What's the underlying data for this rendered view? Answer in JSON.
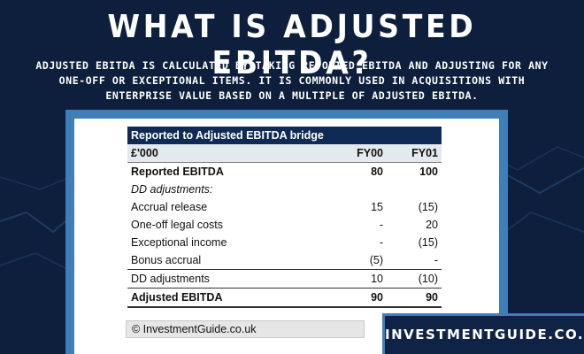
{
  "title": "WHAT IS ADJUSTED EBITDA?",
  "subtitle": "ADJUSTED EBITDA IS CALCULATED BY TAKING REPORTED EBITDA AND ADJUSTING FOR ANY ONE-OFF OR EXCEPTIONAL ITEMS. IT IS COMMONLY USED IN ACQUISITIONS WITH ENTERPRISE VALUE BASED ON A MULTIPLE OF ADJUSTED EBITDA.",
  "table": {
    "header": "Reported to Adjusted EBITDA bridge",
    "columns": [
      "£'000",
      "FY00",
      "FY01"
    ],
    "rows": [
      {
        "label": "Reported EBITDA",
        "fy00": "80",
        "fy01": "100"
      },
      {
        "label": "DD adjustments:",
        "fy00": "",
        "fy01": ""
      },
      {
        "label": "Accrual release",
        "fy00": "15",
        "fy01": "(15)"
      },
      {
        "label": "One-off legal costs",
        "fy00": "-",
        "fy01": "20"
      },
      {
        "label": "Exceptional income",
        "fy00": "-",
        "fy01": "(15)"
      },
      {
        "label": "Bonus accrual",
        "fy00": "(5)",
        "fy01": "-"
      },
      {
        "label": "DD adjustments",
        "fy00": "10",
        "fy01": "(10)"
      },
      {
        "label": "Adjusted EBITDA",
        "fy00": "90",
        "fy01": "90"
      }
    ]
  },
  "copyright": "© InvestmentGuide.co.uk",
  "brand": "INVESTMENTGUIDE.CO.UK",
  "colors": {
    "background": "#0d1f3c",
    "frame": "#3f7fb8",
    "table_header": "#0f2b55"
  }
}
